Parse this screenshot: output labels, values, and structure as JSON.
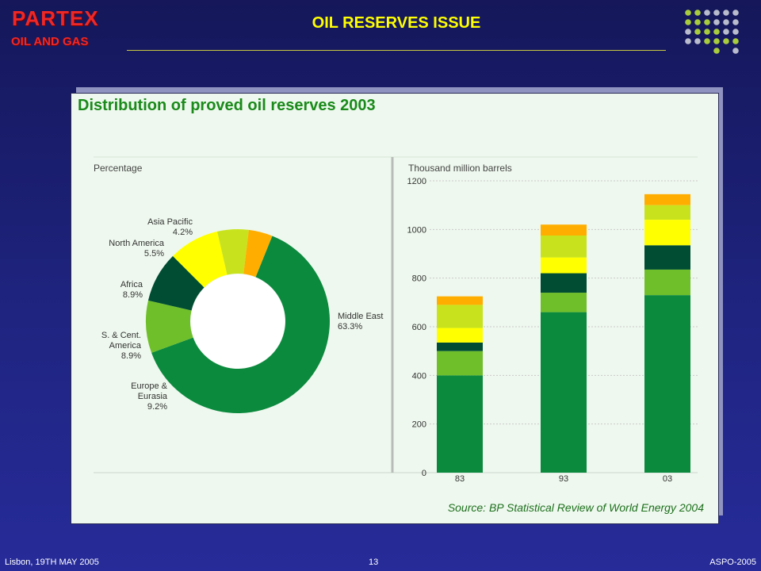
{
  "header": {
    "logo_main": "PARTEX",
    "logo_sub": "OIL AND GAS",
    "title": "OIL RESERVES ISSUE"
  },
  "panel": {
    "title": "Distribution of proved oil reserves 2003",
    "source": "Source: BP Statistical Review of World Energy 2004"
  },
  "footer": {
    "left": "Lisbon, 19TH MAY 2005",
    "page": "13",
    "right": "ASPO-2005"
  },
  "colors": {
    "middle_east": "#0b8a3e",
    "europe_eurasia": "#6fbf2a",
    "s_cent_america": "#004d33",
    "africa": "#ffff00",
    "north_america": "#c8e31e",
    "asia_pacific": "#ffae00"
  },
  "chart_data": [
    {
      "type": "pie",
      "subtitle": "Percentage",
      "slices": [
        {
          "key": "middle_east",
          "name": "Middle East",
          "value": 63.3,
          "value_label": "63.3%"
        },
        {
          "key": "europe_eurasia",
          "name": "Europe & Eurasia",
          "name_lines": [
            "Europe &",
            "Eurasia"
          ],
          "value": 9.2,
          "value_label": "9.2%"
        },
        {
          "key": "s_cent_america",
          "name": "S. & Cent. America",
          "name_lines": [
            "S. & Cent.",
            "America"
          ],
          "value": 8.9,
          "value_label": "8.9%"
        },
        {
          "key": "africa",
          "name": "Africa",
          "value": 8.9,
          "value_label": "8.9%"
        },
        {
          "key": "north_america",
          "name": "North America",
          "value": 5.5,
          "value_label": "5.5%"
        },
        {
          "key": "asia_pacific",
          "name": "Asia Pacific",
          "value": 4.2,
          "value_label": "4.2%"
        }
      ]
    },
    {
      "type": "bar",
      "stacked": true,
      "ylabel": "Thousand million barrels",
      "categories": [
        "83",
        "93",
        "03"
      ],
      "ylim": [
        0,
        1200
      ],
      "yticks": [
        0,
        200,
        400,
        600,
        800,
        1000,
        1200
      ],
      "grid": true,
      "series": [
        {
          "key": "middle_east",
          "values": [
            400,
            660,
            730
          ]
        },
        {
          "key": "europe_eurasia",
          "values": [
            100,
            80,
            105
          ]
        },
        {
          "key": "s_cent_america",
          "values": [
            35,
            80,
            100
          ]
        },
        {
          "key": "africa",
          "values": [
            60,
            65,
            105
          ]
        },
        {
          "key": "north_america",
          "values": [
            95,
            90,
            60
          ]
        },
        {
          "key": "asia_pacific",
          "values": [
            35,
            45,
            45
          ]
        }
      ]
    }
  ]
}
